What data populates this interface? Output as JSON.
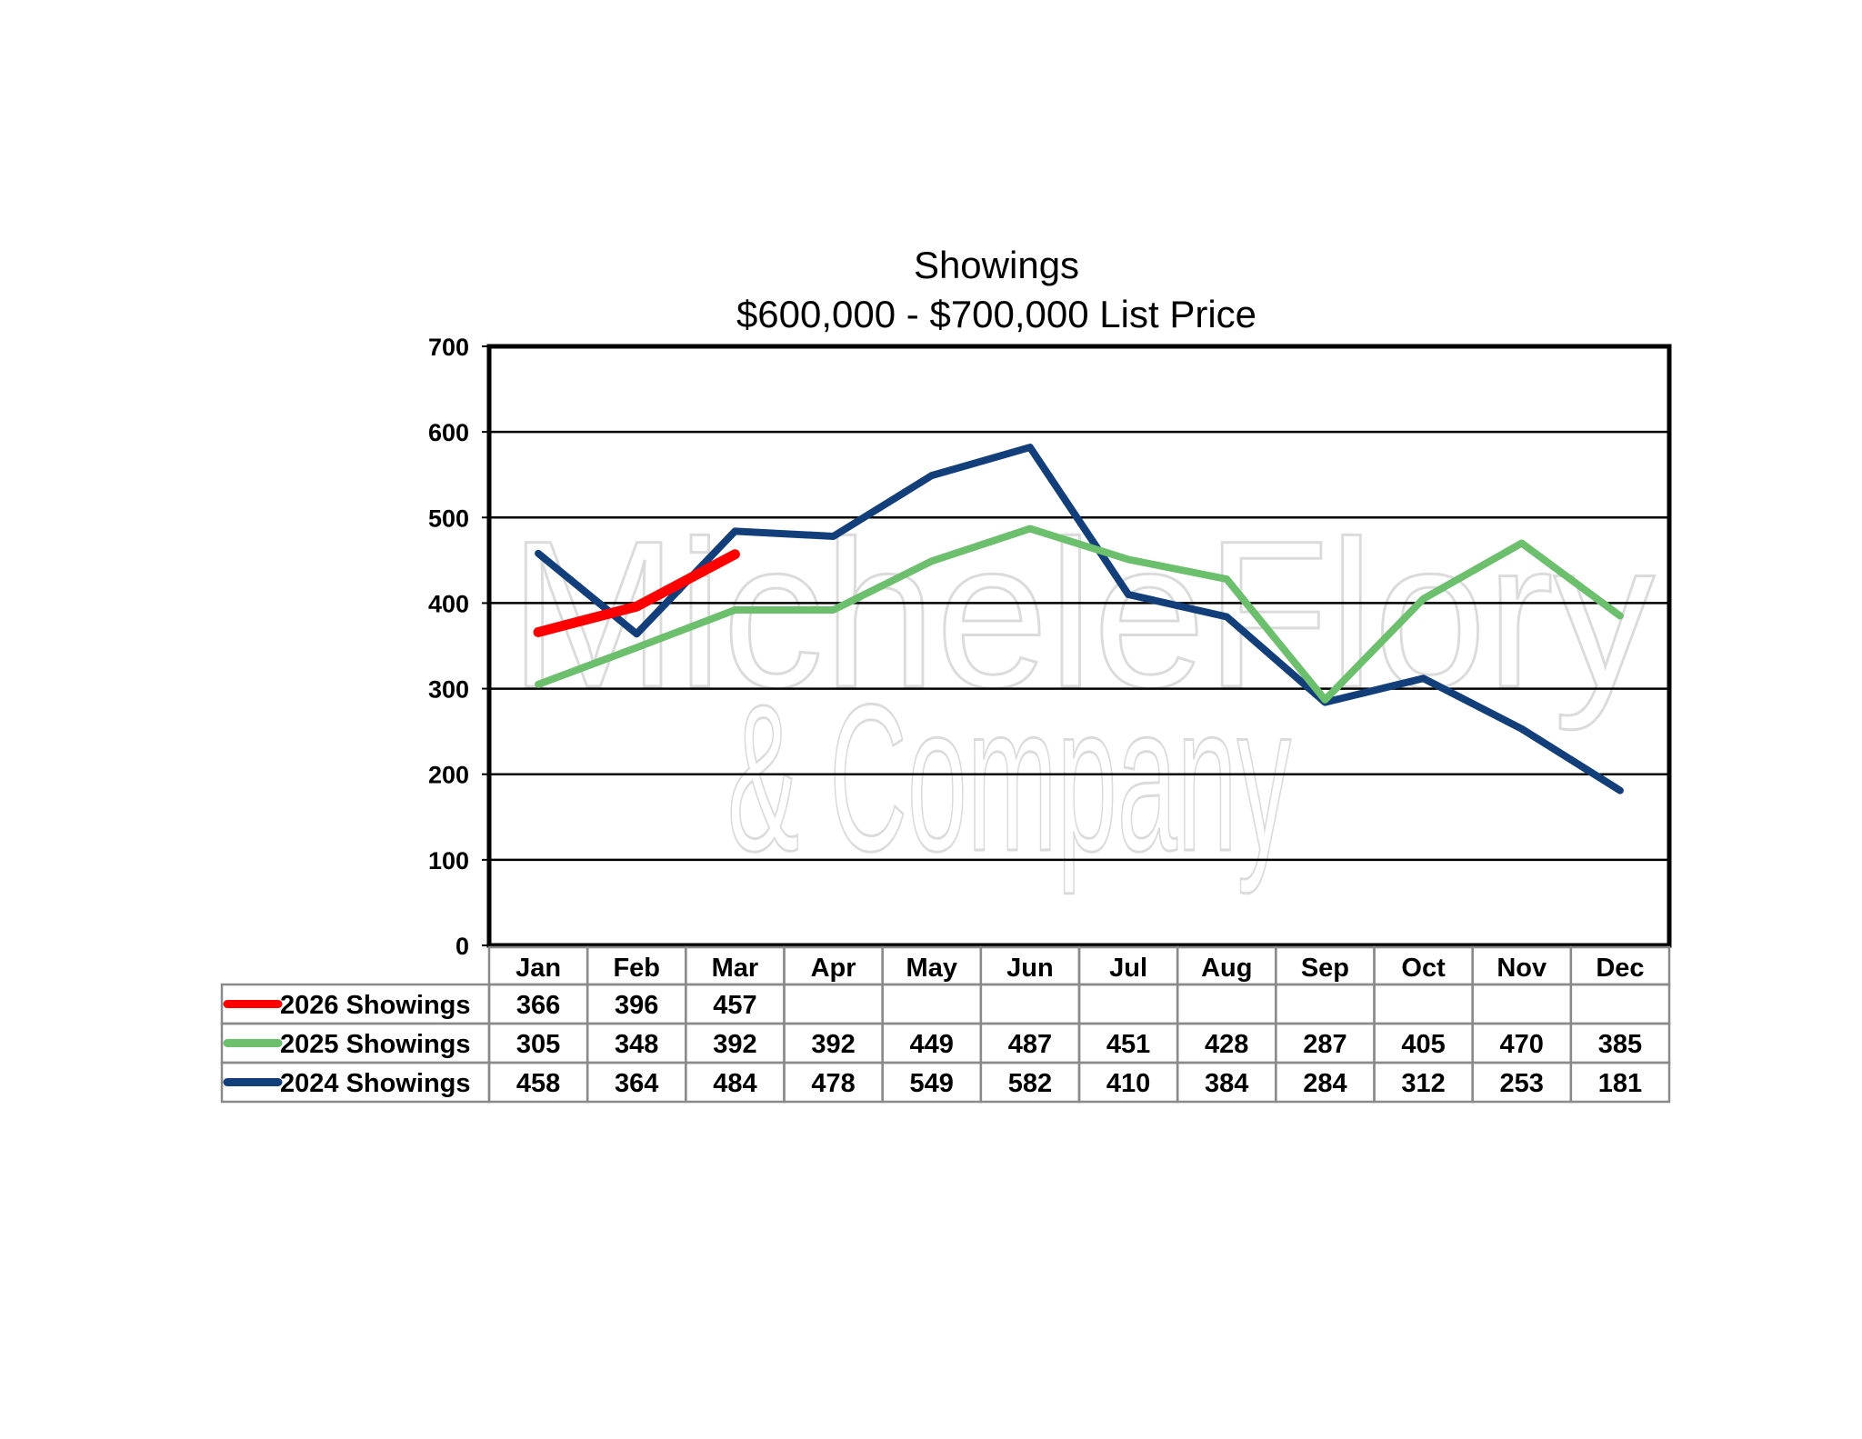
{
  "chart_data": {
    "type": "line",
    "title": "Showings",
    "subtitle": "$600,000 - $700,000 List Price",
    "xlabel": "",
    "ylabel": "",
    "categories": [
      "Jan",
      "Feb",
      "Mar",
      "Apr",
      "May",
      "Jun",
      "Jul",
      "Aug",
      "Sep",
      "Oct",
      "Nov",
      "Dec"
    ],
    "ylim": [
      0,
      700
    ],
    "yticks": [
      "0",
      "100",
      "200",
      "300",
      "400",
      "500",
      "600",
      "700"
    ],
    "grid": true,
    "legend": "data-table-below",
    "series": [
      {
        "name": "2026 Showings",
        "color": "#ff0000",
        "values": [
          366,
          396,
          457,
          null,
          null,
          null,
          null,
          null,
          null,
          null,
          null,
          null
        ]
      },
      {
        "name": "2025 Showings",
        "color": "#6cbf6c",
        "values": [
          305,
          348,
          392,
          392,
          449,
          487,
          451,
          428,
          287,
          405,
          470,
          385
        ]
      },
      {
        "name": "2024 Showings",
        "color": "#123f7a",
        "values": [
          458,
          364,
          484,
          478,
          549,
          582,
          410,
          384,
          284,
          312,
          253,
          181
        ]
      }
    ]
  },
  "watermark": {
    "line1": "MicheleFlory",
    "line2": "& Company"
  }
}
